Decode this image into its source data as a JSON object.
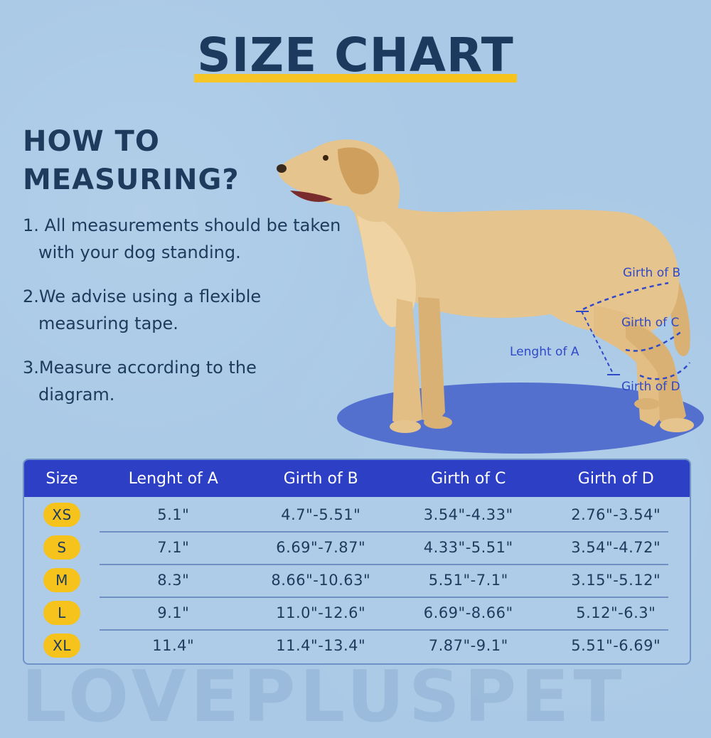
{
  "header": {
    "title": "SIZE CHART"
  },
  "instructions": {
    "heading_line1": "HOW TO",
    "heading_line2": "MEASURING?",
    "steps": [
      "1. All measurements should be taken with your dog standing.",
      "2.We advise using a flexible measuring tape.",
      "3.Measure according to the diagram."
    ]
  },
  "diagram": {
    "labels": {
      "girth_b": "Girth of B",
      "girth_c": "Girth of C",
      "length_a": "Lenght of A",
      "girth_d": "Girth of D"
    },
    "colors": {
      "annotation": "#2f49c8",
      "shadow": "#4a66cc",
      "fur": "#e3bf85"
    }
  },
  "table": {
    "headers": [
      "Size",
      "Lenght of A",
      "Girth of B",
      "Girth of C",
      "Girth of D"
    ],
    "rows": [
      {
        "size": "XS",
        "a": "5.1\"",
        "b": "4.7\"-5.51\"",
        "c": "3.54\"-4.33\"",
        "d": "2.76\"-3.54\""
      },
      {
        "size": "S",
        "a": "7.1\"",
        "b": "6.69\"-7.87\"",
        "c": "4.33\"-5.51\"",
        "d": "3.54\"-4.72\""
      },
      {
        "size": "M",
        "a": "8.3\"",
        "b": "8.66\"-10.63\"",
        "c": "5.51\"-7.1\"",
        "d": "3.15\"-5.12\""
      },
      {
        "size": "L",
        "a": "9.1\"",
        "b": "11.0\"-12.6\"",
        "c": "6.69\"-8.66\"",
        "d": "5.12\"-6.3\""
      },
      {
        "size": "XL",
        "a": "11.4\"",
        "b": "11.4\"-13.4\"",
        "c": "7.87\"-9.1\"",
        "d": "5.51\"-6.69\""
      }
    ],
    "colors": {
      "header_bg": "#2d3fc4",
      "badge": "#f6c21c"
    }
  },
  "watermark": "LOVEPLUSPET"
}
